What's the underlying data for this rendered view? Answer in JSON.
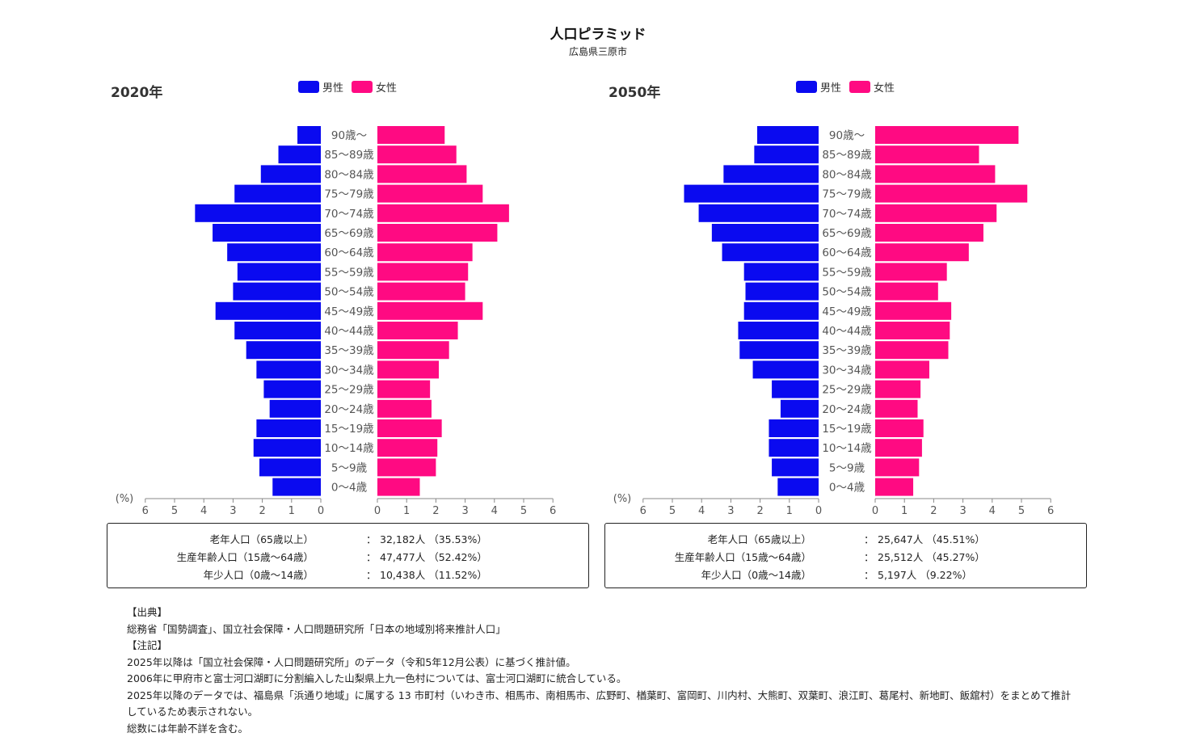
{
  "title": "人口ピラミッド",
  "subtitle": "広島県三原市",
  "legend": {
    "male": "男性",
    "female": "女性"
  },
  "colors": {
    "male": "#0a0af0",
    "female": "#ff0a82",
    "axis": "#888888",
    "text": "#555555"
  },
  "axis_unit": "(%)",
  "chart_data": [
    {
      "type": "bar",
      "title": "2020年",
      "orientation": "horizontal-population-pyramid",
      "categories": [
        "0〜4歳",
        "5〜9歳",
        "10〜14歳",
        "15〜19歳",
        "20〜24歳",
        "25〜29歳",
        "30〜34歳",
        "35〜39歳",
        "40〜44歳",
        "45〜49歳",
        "50〜54歳",
        "55〜59歳",
        "60〜64歳",
        "65〜69歳",
        "70〜74歳",
        "75〜79歳",
        "80〜84歳",
        "85〜89歳",
        "90歳〜"
      ],
      "series": [
        {
          "name": "男性",
          "values": [
            1.65,
            2.1,
            2.3,
            2.2,
            1.75,
            1.95,
            2.2,
            2.55,
            2.95,
            3.6,
            3.0,
            2.85,
            3.2,
            3.7,
            4.3,
            2.95,
            2.05,
            1.45,
            0.8
          ]
        },
        {
          "name": "女性",
          "values": [
            1.45,
            2.0,
            2.05,
            2.2,
            1.85,
            1.8,
            2.1,
            2.45,
            2.75,
            3.6,
            3.0,
            3.1,
            3.25,
            4.1,
            4.5,
            3.6,
            3.05,
            2.7,
            2.3
          ]
        }
      ],
      "xlim": [
        0,
        6
      ],
      "ticks": [
        "6",
        "5",
        "4",
        "3",
        "2",
        "1",
        "0",
        "0",
        "1",
        "2",
        "3",
        "4",
        "5",
        "6"
      ],
      "xlabel": "(%)",
      "summary": [
        {
          "label": "老年人口（65歳以上）",
          "value": "32,182人 （35.53%）"
        },
        {
          "label": "生産年齢人口（15歳〜64歳）",
          "value": "47,477人 （52.42%）"
        },
        {
          "label": "年少人口（0歳〜14歳）",
          "value": "10,438人 （11.52%）"
        }
      ]
    },
    {
      "type": "bar",
      "title": "2050年",
      "orientation": "horizontal-population-pyramid",
      "categories": [
        "0〜4歳",
        "5〜9歳",
        "10〜14歳",
        "15〜19歳",
        "20〜24歳",
        "25〜29歳",
        "30〜34歳",
        "35〜39歳",
        "40〜44歳",
        "45〜49歳",
        "50〜54歳",
        "55〜59歳",
        "60〜64歳",
        "65〜69歳",
        "70〜74歳",
        "75〜79歳",
        "80〜84歳",
        "85〜89歳",
        "90歳〜"
      ],
      "series": [
        {
          "name": "男性",
          "values": [
            1.4,
            1.6,
            1.7,
            1.7,
            1.3,
            1.6,
            2.25,
            2.7,
            2.75,
            2.55,
            2.5,
            2.55,
            3.3,
            3.65,
            4.1,
            4.6,
            3.25,
            2.2,
            2.1
          ]
        },
        {
          "name": "女性",
          "values": [
            1.3,
            1.5,
            1.6,
            1.65,
            1.45,
            1.55,
            1.85,
            2.5,
            2.55,
            2.6,
            2.15,
            2.45,
            3.2,
            3.7,
            4.15,
            5.2,
            4.1,
            3.55,
            4.9
          ]
        }
      ],
      "xlim": [
        0,
        6
      ],
      "ticks": [
        "6",
        "5",
        "4",
        "3",
        "2",
        "1",
        "0",
        "0",
        "1",
        "2",
        "3",
        "4",
        "5",
        "6"
      ],
      "xlabel": "(%)",
      "summary": [
        {
          "label": "老年人口（65歳以上）",
          "value": "25,647人 （45.51%）"
        },
        {
          "label": "生産年齢人口（15歳〜64歳）",
          "value": "25,512人 （45.27%）"
        },
        {
          "label": "年少人口（0歳〜14歳）",
          "value": "5,197人 （9.22%）"
        }
      ]
    }
  ],
  "notes": [
    "【出典】",
    "総務省「国勢調査」、国立社会保障・人口問題研究所「日本の地域別将来推計人口」",
    "【注記】",
    "2025年以降は「国立社会保障・人口問題研究所」のデータ（令和5年12月公表）に基づく推計値。",
    "2006年に甲府市と富士河口湖町に分割編入した山梨県上九一色村については、富士河口湖町に統合している。",
    "2025年以降のデータでは、福島県「浜通り地域」に属する 13 市町村（いわき市、相馬市、南相馬市、広野町、楢葉町、富岡町、川内村、大熊町、双葉町、浪江町、葛尾村、新地町、飯舘村）をまとめて推計",
    "しているため表示されない。",
    "総数には年齢不詳を含む。"
  ]
}
